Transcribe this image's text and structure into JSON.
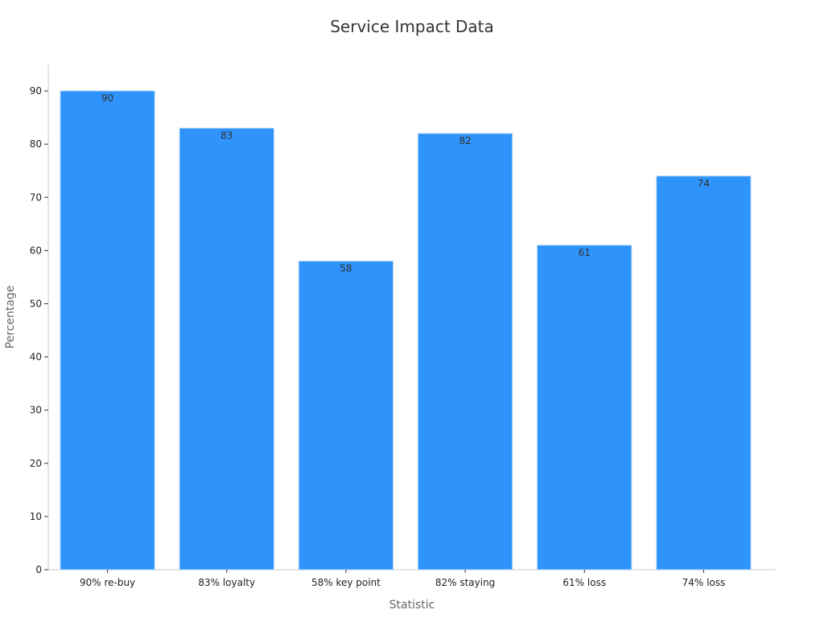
{
  "chart_data": {
    "type": "bar",
    "title": "Service Impact Data",
    "xlabel": "Statistic",
    "ylabel": "Percentage",
    "categories": [
      "90% re-buy",
      "83% loyalty",
      "58% key point",
      "82% staying",
      "61% loss",
      "74% loss"
    ],
    "values": [
      90,
      83,
      58,
      82,
      61,
      74
    ],
    "ylim": [
      0,
      95
    ],
    "yticks": [
      0,
      10,
      20,
      30,
      40,
      50,
      60,
      70,
      80,
      90
    ],
    "grid": false,
    "legend": "none",
    "bar_color": "#2E93FA",
    "axis_color": "#cccccc",
    "text_color": "#333333"
  }
}
